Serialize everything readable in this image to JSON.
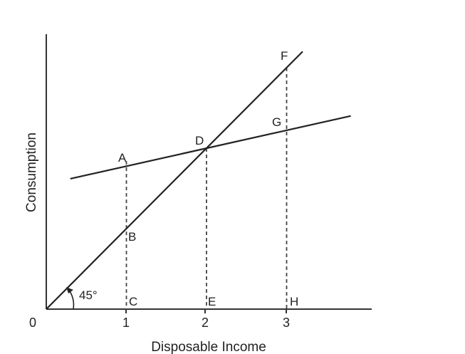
{
  "chart_data": {
    "type": "line",
    "xlabel": "Disposable Income",
    "ylabel": "Consumption",
    "origin_label": "0",
    "x_ticks": [
      {
        "value": 1,
        "label": "1"
      },
      {
        "value": 2,
        "label": "2"
      },
      {
        "value": 3,
        "label": "3"
      }
    ],
    "xlim": [
      0,
      4
    ],
    "ylim": [
      0,
      3.4
    ],
    "grid": false,
    "angle_label": "45°",
    "series": [
      {
        "key": "line45",
        "x": [
          0,
          3.2
        ],
        "y": [
          0,
          3.2
        ]
      },
      {
        "key": "consumption",
        "x": [
          0.3,
          3.8
        ],
        "y": [
          1.62,
          2.4
        ]
      }
    ],
    "points": [
      {
        "label": "A",
        "x": 1,
        "y": 1.84
      },
      {
        "label": "B",
        "x": 1,
        "y": 1.0
      },
      {
        "label": "C",
        "x": 1,
        "y": 0
      },
      {
        "label": "D",
        "x": 2,
        "y": 2.0
      },
      {
        "label": "E",
        "x": 2,
        "y": 0
      },
      {
        "label": "F",
        "x": 3,
        "y": 3.0
      },
      {
        "label": "G",
        "x": 3,
        "y": 2.24
      },
      {
        "label": "H",
        "x": 3,
        "y": 0
      }
    ],
    "dashed_lines": [
      {
        "x": 1,
        "y_top": 1.84
      },
      {
        "x": 2,
        "y_top": 2.0
      },
      {
        "x": 3,
        "y_top": 3.0
      }
    ]
  }
}
